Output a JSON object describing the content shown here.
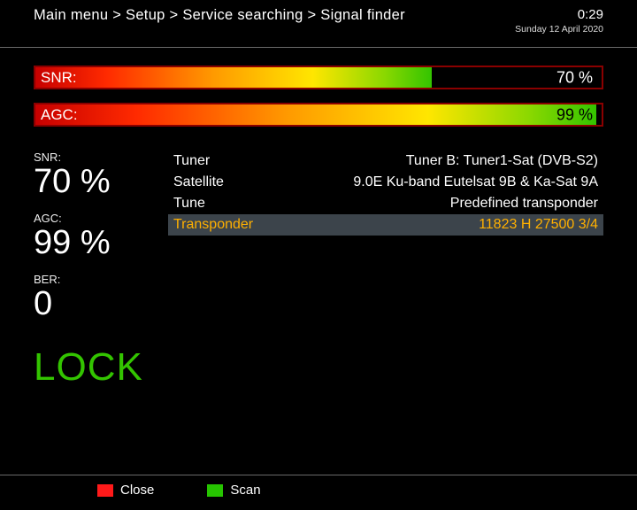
{
  "header": {
    "breadcrumb": "Main menu > Setup > Service searching > Signal finder",
    "time": "0:29",
    "date": "Sunday 12 April 2020"
  },
  "bars": {
    "snr": {
      "label": "SNR:",
      "value_text": "70 %",
      "percent": 70,
      "value_over_fill": false
    },
    "agc": {
      "label": "AGC:",
      "value_text": "99 %",
      "percent": 99,
      "value_over_fill": true
    }
  },
  "stats": {
    "snr_label": "SNR:",
    "snr_value": "70 %",
    "agc_label": "AGC:",
    "agc_value": "99 %",
    "ber_label": "BER:",
    "ber_value": "0",
    "lock": "LOCK"
  },
  "details": {
    "rows": [
      {
        "key": "Tuner",
        "val": "Tuner B: Tuner1-Sat (DVB-S2)",
        "selected": false
      },
      {
        "key": "Satellite",
        "val": "9.0E Ku-band Eutelsat 9B & Ka-Sat 9A",
        "selected": false
      },
      {
        "key": "Tune",
        "val": "Predefined transponder",
        "selected": false
      },
      {
        "key": "Transponder",
        "val": "11823 H 27500 3/4",
        "selected": true
      }
    ]
  },
  "footer": {
    "close": "Close",
    "scan": "Scan"
  },
  "style": {
    "bar_gradient": [
      "#c70000",
      "#ff2a00",
      "#ff9a00",
      "#ffe600",
      "#8bd800",
      "#33c400"
    ],
    "bar_border": "#8a0000",
    "background": "#000000",
    "text": "#ffffff",
    "divider": "#6a6a6a",
    "selected_bg": "#3c444b",
    "selected_fg": "#ffb000",
    "lock_color": "#33c400",
    "button_red": "#ff1a1a",
    "button_green": "#26c400"
  }
}
